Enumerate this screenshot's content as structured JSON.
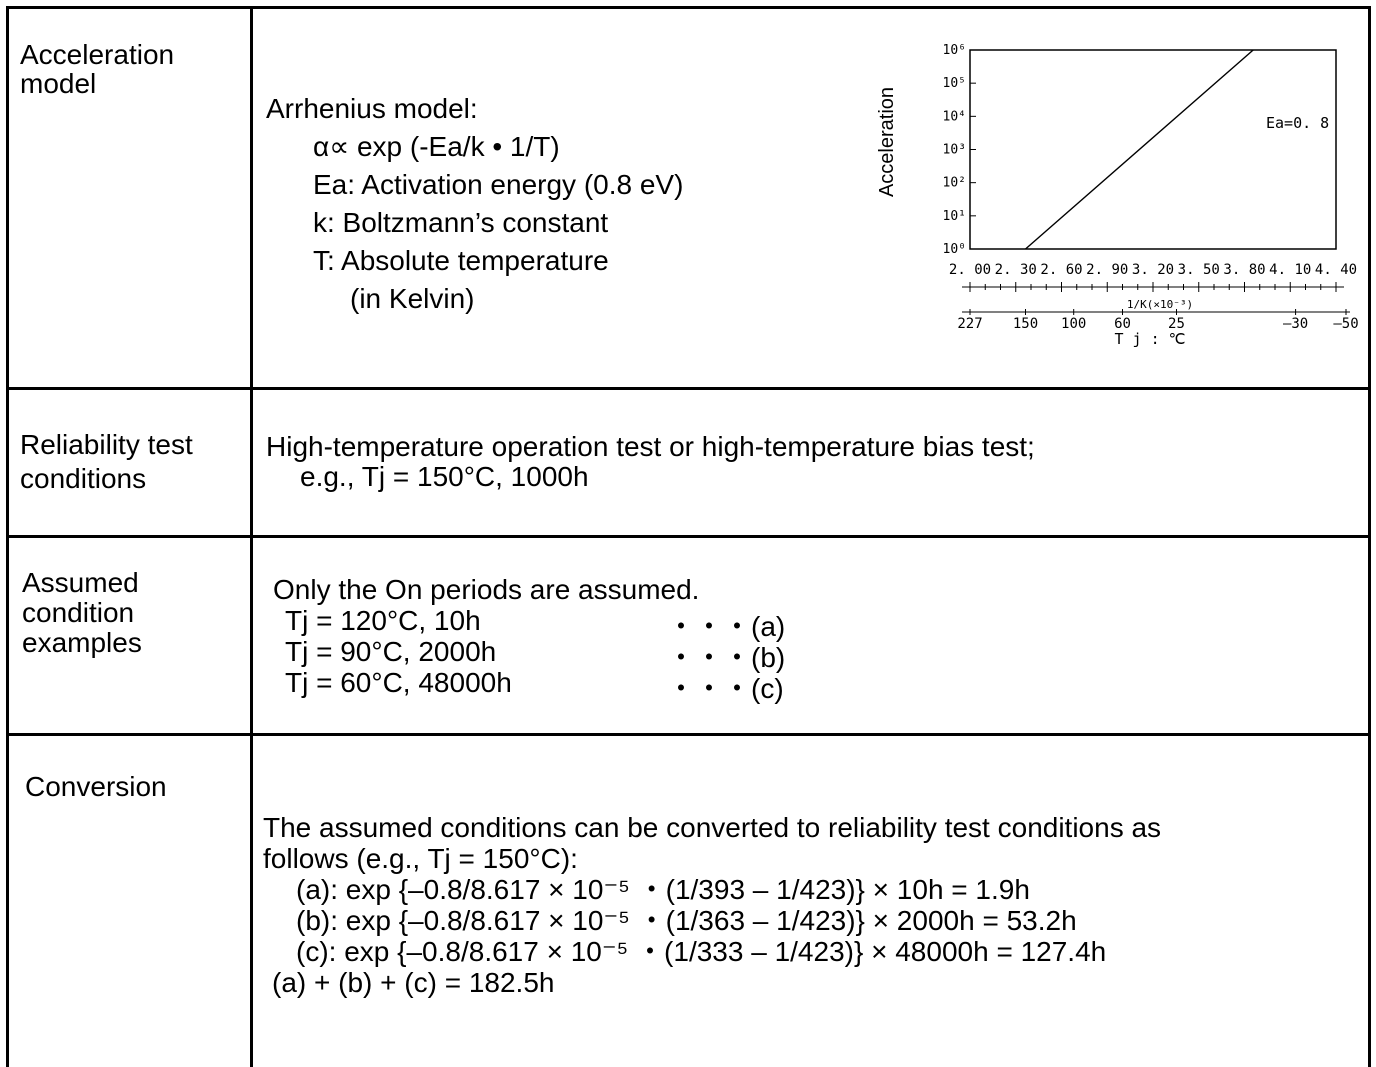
{
  "rows": {
    "acceleration": {
      "label": [
        "Acceleration",
        "model"
      ],
      "lines": [
        "Arrhenius model:",
        "α∝ exp (-Ea/k • 1/T)",
        "Ea: Activation energy (0.8 eV)",
        "k: Boltzmann’s constant",
        "T: Absolute temperature",
        "(in Kelvin)"
      ]
    },
    "reliability": {
      "label": [
        "Reliability test",
        "conditions"
      ],
      "lines": [
        "High-temperature operation test or high-temperature bias test;",
        "e.g., Tj = 150°C, 1000h"
      ]
    },
    "assumed": {
      "label": [
        "Assumed",
        "condition",
        "examples"
      ],
      "intro": "Only the On periods are assumed.",
      "items": [
        {
          "cond": "Tj = 120°C, 10h",
          "ref": "・・・(a)"
        },
        {
          "cond": "Tj = 90°C, 2000h",
          "ref": "・・・(b)"
        },
        {
          "cond": "Tj = 60°C, 48000h",
          "ref": "・・・(c)"
        }
      ]
    },
    "conversion": {
      "label": [
        "Conversion"
      ],
      "lines": [
        "The assumed conditions can be converted to reliability test conditions as",
        "follows (e.g., Tj = 150°C):",
        "(a): exp {–0.8/8.617 × 10⁻⁵ ・(1/393 – 1/423)} × 10h = 1.9h",
        "(b): exp {–0.8/8.617 × 10⁻⁵ ・(1/363 – 1/423)} × 2000h = 53.2h",
        "(c): exp {–0.8/8.617 × 10⁻⁵ ・(1/333 – 1/423)} × 48000h = 127.4h",
        "(a) + (b) + (c) = 182.5h"
      ]
    }
  },
  "chart_data": {
    "type": "line",
    "ylabel": "Acceleration",
    "y_scale": "log",
    "ylim": [
      1,
      1000000
    ],
    "y_ticks": [
      "10⁰",
      "10¹",
      "10²",
      "10³",
      "10⁴",
      "10⁵",
      "10⁶"
    ],
    "x_ticks": [
      "2. 00",
      "2. 30",
      "2. 60",
      "2. 90",
      "3. 20",
      "3. 50",
      "3. 80",
      "4. 10",
      "4. 40"
    ],
    "xlim": [
      2.0,
      4.4
    ],
    "xlabel": "1/K(×10⁻³)",
    "temp_ticks": [
      "227",
      "150",
      "100",
      "60",
      "25",
      "–30",
      "–50"
    ],
    "temp_ticks_x": [
      2.0,
      2.364,
      2.68,
      3.0,
      3.354,
      4.135,
      4.484
    ],
    "temp_label": "T j : ℃",
    "series": [
      {
        "name": "Ea=0. 8",
        "x": [
          2.364,
          3.857
        ],
        "y": [
          1,
          1000000
        ]
      }
    ],
    "annotation": "Ea=0. 8"
  }
}
